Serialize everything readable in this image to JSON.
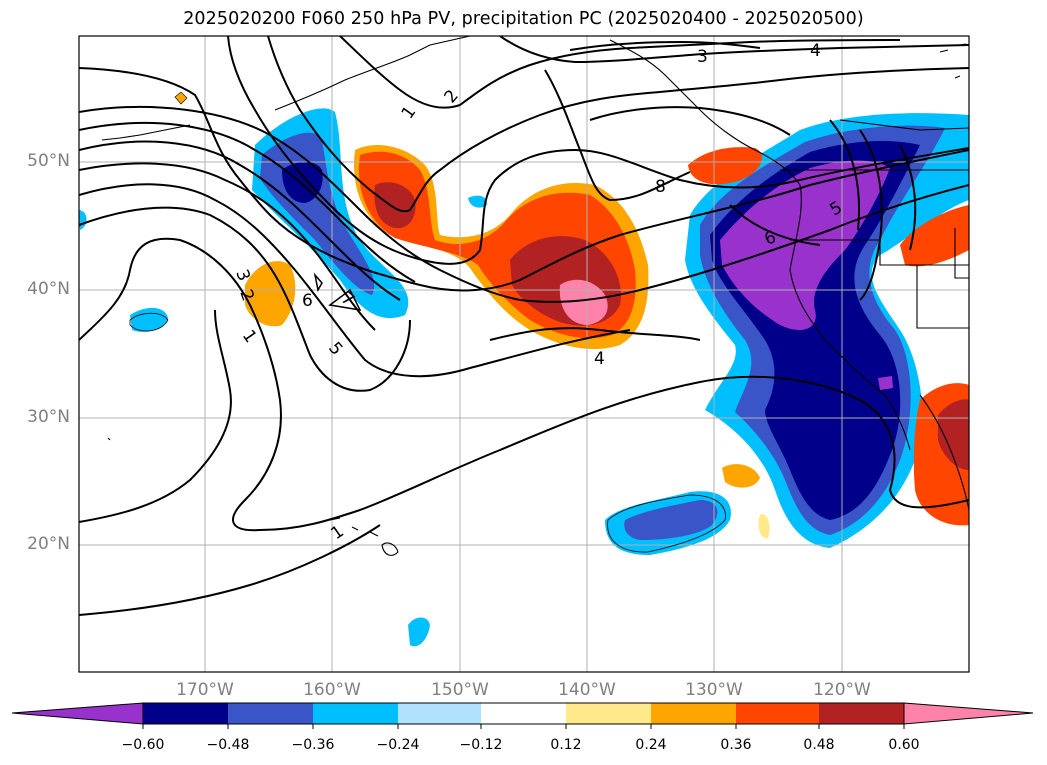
{
  "title": "2025020200 F060 250 hPa PV, precipitation PC (2025020400 - 2025020500)",
  "map": {
    "projection": "lat-lon",
    "lon_range": [
      "180°",
      "110°W"
    ],
    "lat_range": [
      "10°N",
      "60°N"
    ],
    "lat_labels": [
      "50°N",
      "40°N",
      "30°N",
      "20°N"
    ],
    "lon_labels": [
      "170°W",
      "160°W",
      "150°W",
      "140°W",
      "130°W",
      "120°W"
    ],
    "pv_contour_labels": [
      "1",
      "2",
      "3",
      "4",
      "5",
      "6",
      "7",
      "8"
    ],
    "gridlines": true,
    "coastlines": true
  },
  "colorbar": {
    "ticks": [
      "−0.60",
      "−0.48",
      "−0.36",
      "−0.24",
      "−0.12",
      "0.12",
      "0.24",
      "0.36",
      "0.48",
      "0.60"
    ],
    "colors": [
      "#9932cc",
      "#00008b",
      "#3a55c8",
      "#00bfff",
      "#b0e2ff",
      "#ffffff",
      "#ffe98a",
      "#ffa500",
      "#ff4500",
      "#b22222",
      "#ff82ab"
    ],
    "extend": "both"
  },
  "colors": {
    "purple": "#9932cc",
    "navy": "#00008b",
    "blue": "#3a55c8",
    "sky": "#00bfff",
    "light_blue": "#b0e2ff",
    "pale_yellow": "#ffe98a",
    "orange": "#ffa500",
    "red_orange": "#ff4500",
    "firebrick": "#b22222",
    "pink": "#ff82ab"
  }
}
